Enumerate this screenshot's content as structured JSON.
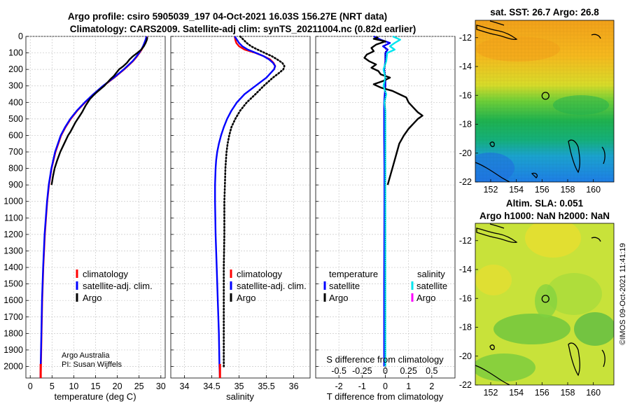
{
  "title": {
    "line1": "Argo profile: csiro 5905039_197 04-Oct-2021 16.03S 156.27E (NRT data)",
    "line2": "Climatology: CARS2009. Satellite-adj clim: synTS_20211004.nc (0.82d earlier)"
  },
  "credit": {
    "line1": "Argo Australia",
    "line2": "PI: Susan Wijffels"
  },
  "imos_stamp": "©IMOS 09-Oct-2021 11:41:19",
  "colors": {
    "climatology": "#ff0000",
    "satellite": "#0000ff",
    "argo": "#000000",
    "sat_sal_diff": "#00e5ee",
    "argo_sal_diff": "#ff00ff"
  },
  "chart_data": [
    {
      "id": "temperature",
      "type": "line",
      "xlabel": "temperature (deg C)",
      "ylabel": "",
      "xlim": [
        -1,
        31
      ],
      "ylim": [
        2070,
        0
      ],
      "xticks": [
        0,
        5,
        10,
        15,
        20,
        25,
        30
      ],
      "yticks": [
        0,
        100,
        200,
        300,
        400,
        500,
        600,
        700,
        800,
        900,
        1000,
        1100,
        1200,
        1300,
        1400,
        1500,
        1600,
        1700,
        1800,
        1900,
        2000
      ],
      "legend": [
        "climatology",
        "satellite-adj. clim.",
        "Argo"
      ],
      "series": [
        {
          "name": "climatology",
          "style": "red",
          "depth": [
            0,
            10,
            20,
            40,
            60,
            80,
            100,
            125,
            150,
            175,
            200,
            250,
            300,
            350,
            400,
            450,
            500,
            550,
            600,
            700,
            800,
            900,
            1000,
            1200,
            1400,
            1600,
            1800,
            2000,
            2070
          ],
          "values": [
            26.8,
            26.7,
            26.6,
            26.3,
            26.0,
            25.6,
            25.1,
            24.4,
            23.6,
            22.6,
            21.6,
            19.3,
            16.8,
            14.6,
            12.6,
            10.8,
            9.3,
            8.1,
            7.1,
            5.8,
            4.9,
            4.3,
            3.9,
            3.35,
            3.0,
            2.75,
            2.6,
            2.45,
            2.4
          ]
        },
        {
          "name": "satellite-adj. clim.",
          "style": "blue",
          "depth": [
            0,
            10,
            20,
            40,
            60,
            80,
            100,
            125,
            150,
            175,
            200,
            250,
            300,
            350,
            400,
            450,
            500,
            550,
            600,
            700,
            800,
            900,
            1000,
            1200,
            1400,
            1600,
            1800,
            2000,
            2070
          ],
          "values": [
            26.7,
            26.6,
            26.5,
            26.2,
            25.9,
            25.5,
            25.0,
            24.3,
            23.5,
            22.5,
            21.5,
            19.2,
            16.7,
            14.5,
            12.5,
            10.7,
            9.2,
            8.0,
            7.0,
            5.7,
            4.85,
            4.25,
            3.85,
            3.3,
            2.95,
            2.7,
            2.55,
            2.4,
            2.35
          ]
        },
        {
          "name": "Argo",
          "style": "black",
          "depth": [
            5,
            20,
            40,
            60,
            80,
            100,
            120,
            140,
            160,
            180,
            200,
            220,
            240,
            260,
            280,
            300,
            320,
            340,
            360,
            380,
            400,
            420,
            440,
            460,
            480,
            500,
            520,
            540,
            560,
            580,
            600,
            650,
            700,
            750,
            800,
            850,
            900
          ],
          "values": [
            26.9,
            26.8,
            26.5,
            26.1,
            25.5,
            24.6,
            23.6,
            22.8,
            22.2,
            21.4,
            20.4,
            19.8,
            19.2,
            18.4,
            17.7,
            17.0,
            16.1,
            15.2,
            14.4,
            13.7,
            13.2,
            12.7,
            12.3,
            11.9,
            11.4,
            10.9,
            10.4,
            10.0,
            9.6,
            9.2,
            8.7,
            7.8,
            6.9,
            6.2,
            5.6,
            5.2,
            4.9
          ]
        }
      ]
    },
    {
      "id": "salinity",
      "type": "line",
      "xlabel": "salinity",
      "ylabel": "",
      "xlim": [
        33.75,
        36.3
      ],
      "ylim": [
        2070,
        0
      ],
      "xticks": [
        34,
        34.5,
        35,
        35.5,
        36
      ],
      "legend": [
        "climatology",
        "satellite-adj. clim.",
        "Argo"
      ],
      "series": [
        {
          "name": "climatology",
          "style": "red",
          "depth": [
            0,
            20,
            40,
            60,
            80,
            100,
            120,
            140,
            160,
            180,
            200
          ],
          "values": [
            34.92,
            34.93,
            34.95,
            35.0,
            35.1,
            35.3,
            35.45,
            35.57,
            35.63,
            35.66,
            35.64
          ]
        },
        {
          "name": "satellite-adj. clim.",
          "style": "blue",
          "depth": [
            0,
            20,
            40,
            60,
            80,
            100,
            120,
            140,
            160,
            180,
            200,
            250,
            300,
            350,
            400,
            450,
            500,
            550,
            600,
            650,
            700,
            750,
            800,
            900,
            1000,
            1200,
            1400,
            1600,
            1800,
            2000,
            2070
          ],
          "values": [
            34.92,
            34.96,
            35.0,
            35.06,
            35.16,
            35.31,
            35.45,
            35.55,
            35.62,
            35.66,
            35.64,
            35.5,
            35.3,
            35.1,
            34.96,
            34.86,
            34.78,
            34.72,
            34.67,
            34.63,
            34.6,
            34.58,
            34.57,
            34.56,
            34.56,
            34.57,
            34.59,
            34.61,
            34.63,
            34.64,
            34.65
          ]
        },
        {
          "name": "Argo",
          "style": "black-dotted",
          "depth": [
            0,
            20,
            40,
            60,
            80,
            100,
            120,
            140,
            160,
            180,
            200,
            225,
            250,
            300,
            350,
            400,
            450,
            500,
            550,
            600,
            650,
            700,
            750,
            800,
            900,
            1000,
            1200,
            1400,
            1600,
            1800,
            2000
          ],
          "values": [
            35.02,
            35.08,
            35.14,
            35.22,
            35.34,
            35.47,
            35.6,
            35.7,
            35.79,
            35.83,
            35.81,
            35.72,
            35.62,
            35.45,
            35.3,
            35.14,
            35.02,
            34.93,
            34.86,
            34.82,
            34.79,
            34.77,
            34.76,
            34.75,
            34.74,
            34.73,
            34.73,
            34.72,
            34.72,
            34.72,
            34.72
          ]
        }
      ]
    },
    {
      "id": "difference",
      "type": "line",
      "xlabel": "T difference from climatology",
      "x2label": "S difference from climatology",
      "xlim": [
        -3,
        3
      ],
      "ylim": [
        2070,
        0
      ],
      "xticks": [
        -2,
        -1,
        0,
        1,
        2
      ],
      "x2ticks": [
        "-0.5",
        "-0.25",
        "0",
        "0.25",
        "0.5"
      ],
      "legend_temperature_title": "temperature",
      "legend_salinity_title": "salinity",
      "legend_temperature": [
        "satellite",
        "Argo"
      ],
      "legend_salinity": [
        "satellite",
        "Argo"
      ],
      "series": [
        {
          "name": "T satellite",
          "style": "blue",
          "depth": [
            0,
            20,
            40,
            60,
            80,
            100,
            150,
            200,
            250,
            300,
            400,
            500,
            600,
            800,
            1000,
            1500,
            2000
          ],
          "values": [
            -0.5,
            -0.2,
            0.2,
            -0.1,
            0.1,
            0.0,
            0.0,
            -0.05,
            0.0,
            0.0,
            -0.05,
            -0.05,
            -0.05,
            -0.04,
            -0.04,
            -0.05,
            -0.05
          ]
        },
        {
          "name": "T Argo",
          "style": "black",
          "depth": [
            5,
            15,
            30,
            50,
            70,
            90,
            110,
            130,
            150,
            170,
            190,
            210,
            230,
            250,
            270,
            290,
            310,
            330,
            350,
            370,
            400,
            430,
            460,
            480,
            500,
            530,
            560,
            600,
            650,
            700,
            750,
            800,
            850,
            900
          ],
          "values": [
            -0.3,
            -0.5,
            0.0,
            -0.4,
            -0.6,
            -0.5,
            -0.8,
            -0.9,
            -0.7,
            -0.4,
            -0.6,
            -0.3,
            -0.2,
            0.2,
            -0.1,
            -0.5,
            -0.2,
            0.3,
            0.6,
            0.9,
            1.0,
            1.2,
            1.4,
            1.6,
            1.4,
            1.2,
            1.0,
            0.8,
            0.6,
            0.5,
            0.4,
            0.3,
            0.2,
            0.1
          ]
        },
        {
          "name": "S satellite",
          "style": "cyan",
          "depth": [
            0,
            20,
            40,
            60,
            80,
            100,
            150,
            200,
            250,
            300,
            350,
            400,
            450,
            500,
            600,
            800,
            1000,
            1500,
            2000
          ],
          "values": [
            0.08,
            0.16,
            0.1,
            0.05,
            0.1,
            0.02,
            0.01,
            -0.02,
            0.0,
            -0.02,
            0.01,
            -0.01,
            0.0,
            0.0,
            0.0,
            0.0,
            0.0,
            0.0,
            0.0
          ]
        }
      ]
    }
  ],
  "maps": [
    {
      "id": "sst",
      "title": "sat. SST: 26.7 Argo: 26.8",
      "xticks": [
        "152",
        "154",
        "156",
        "158",
        "160"
      ],
      "yticks": [
        "-12",
        "-14",
        "-16",
        "-18",
        "-20",
        "-22"
      ],
      "float_lon": 156.27,
      "float_lat": -16.03,
      "lon_range": [
        150.8,
        161.6
      ],
      "lat_range": [
        -22.0,
        -10.8
      ]
    },
    {
      "id": "sla",
      "title_line1": "Altim. SLA: 0.051",
      "title_line2": "Argo h1000: NaN h2000: NaN",
      "xticks": [
        "152",
        "154",
        "156",
        "158",
        "160"
      ],
      "yticks": [
        "-12",
        "-14",
        "-16",
        "-18",
        "-20",
        "-22"
      ],
      "float_lon": 156.27,
      "float_lat": -16.03,
      "lon_range": [
        150.8,
        161.6
      ],
      "lat_range": [
        -22.0,
        -10.8
      ]
    }
  ]
}
